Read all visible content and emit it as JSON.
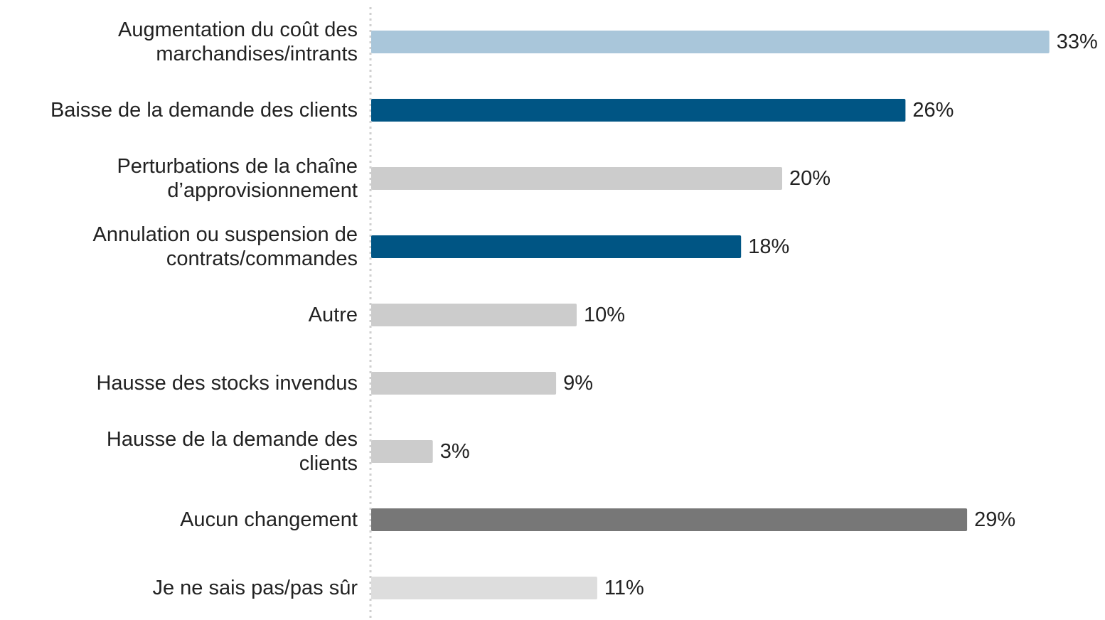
{
  "chart_data": {
    "type": "bar",
    "orientation": "horizontal",
    "categories": [
      "Augmentation du coût des\nmarchandises/intrants",
      "Baisse de la demande des clients",
      "Perturbations de la chaîne\nd’approvisionnement",
      "Annulation ou suspension de\ncontrats/commandes",
      "Autre",
      "Hausse des stocks invendus",
      "Hausse de la demande des\nclients",
      "Aucun changement",
      "Je ne sais pas/pas sûr"
    ],
    "values": [
      33,
      26,
      20,
      18,
      10,
      9,
      3,
      29,
      11
    ],
    "value_labels": [
      "33%",
      "26%",
      "20%",
      "18%",
      "10%",
      "9%",
      "3%",
      "29%",
      "11%"
    ],
    "colors": [
      "#a9c6da",
      "#005584",
      "#cccccc",
      "#005584",
      "#cccccc",
      "#cccccc",
      "#cccccc",
      "#777777",
      "#dddddd"
    ]
  }
}
